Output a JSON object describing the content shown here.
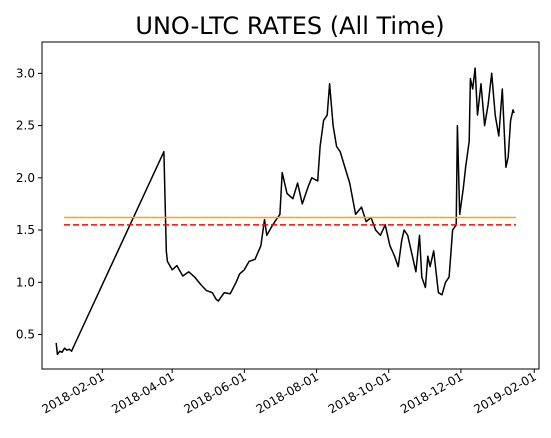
{
  "chart_data": {
    "type": "line",
    "title": "UNO-LTC RATES (All Time)",
    "xlabel": "",
    "ylabel": "",
    "x_range": [
      "2017-12-12",
      "2019-02-05"
    ],
    "ylim": [
      0.17,
      3.3
    ],
    "grid": false,
    "x_ticks": [
      "2018-02-01",
      "2018-04-01",
      "2018-06-01",
      "2018-08-01",
      "2018-10-01",
      "2018-12-01",
      "2019-02-01"
    ],
    "y_ticks": [
      0.5,
      1.0,
      1.5,
      2.0,
      2.5,
      3.0
    ],
    "y_tick_labels": [
      "0.5",
      "1.0",
      "1.5",
      "2.0",
      "2.5",
      "3.0"
    ],
    "hlines": [
      {
        "value": 1.62,
        "color": "#ffa500",
        "style": "solid"
      },
      {
        "value": 1.55,
        "color": "#ff0000",
        "style": "dashed"
      }
    ],
    "series": [
      {
        "color": "#000000",
        "points": [
          [
            "2017-12-24",
            0.42
          ],
          [
            "2017-12-25",
            0.31
          ],
          [
            "2017-12-27",
            0.34
          ],
          [
            "2017-12-29",
            0.33
          ],
          [
            "2017-12-31",
            0.37
          ],
          [
            "2018-01-02",
            0.35
          ],
          [
            "2018-01-04",
            0.36
          ],
          [
            "2018-01-06",
            0.34
          ],
          [
            "2018-01-08",
            0.39
          ],
          [
            "2018-03-25",
            2.25
          ],
          [
            "2018-03-27",
            1.3
          ],
          [
            "2018-03-28",
            1.2
          ],
          [
            "2018-04-01",
            1.12
          ],
          [
            "2018-04-05",
            1.16
          ],
          [
            "2018-04-10",
            1.06
          ],
          [
            "2018-04-15",
            1.1
          ],
          [
            "2018-04-20",
            1.05
          ],
          [
            "2018-04-25",
            0.98
          ],
          [
            "2018-04-30",
            0.92
          ],
          [
            "2018-05-05",
            0.9
          ],
          [
            "2018-05-08",
            0.84
          ],
          [
            "2018-05-10",
            0.82
          ],
          [
            "2018-05-15",
            0.9
          ],
          [
            "2018-05-20",
            0.89
          ],
          [
            "2018-05-25",
            1.0
          ],
          [
            "2018-05-28",
            1.08
          ],
          [
            "2018-06-01",
            1.12
          ],
          [
            "2018-06-05",
            1.2
          ],
          [
            "2018-06-10",
            1.22
          ],
          [
            "2018-06-15",
            1.35
          ],
          [
            "2018-06-18",
            1.6
          ],
          [
            "2018-06-20",
            1.45
          ],
          [
            "2018-06-25",
            1.55
          ],
          [
            "2018-06-28",
            1.6
          ],
          [
            "2018-07-01",
            1.65
          ],
          [
            "2018-07-03",
            2.05
          ],
          [
            "2018-07-07",
            1.85
          ],
          [
            "2018-07-12",
            1.8
          ],
          [
            "2018-07-16",
            1.95
          ],
          [
            "2018-07-20",
            1.75
          ],
          [
            "2018-07-25",
            1.92
          ],
          [
            "2018-07-28",
            2.0
          ],
          [
            "2018-08-02",
            1.97
          ],
          [
            "2018-08-04",
            2.3
          ],
          [
            "2018-08-07",
            2.55
          ],
          [
            "2018-08-10",
            2.6
          ],
          [
            "2018-08-12",
            2.9
          ],
          [
            "2018-08-15",
            2.5
          ],
          [
            "2018-08-18",
            2.3
          ],
          [
            "2018-08-21",
            2.25
          ],
          [
            "2018-08-25",
            2.1
          ],
          [
            "2018-08-29",
            1.95
          ],
          [
            "2018-09-03",
            1.65
          ],
          [
            "2018-09-08",
            1.72
          ],
          [
            "2018-09-12",
            1.58
          ],
          [
            "2018-09-16",
            1.62
          ],
          [
            "2018-09-20",
            1.5
          ],
          [
            "2018-09-24",
            1.45
          ],
          [
            "2018-09-28",
            1.55
          ],
          [
            "2018-10-02",
            1.35
          ],
          [
            "2018-10-06",
            1.25
          ],
          [
            "2018-10-09",
            1.15
          ],
          [
            "2018-10-12",
            1.4
          ],
          [
            "2018-10-14",
            1.5
          ],
          [
            "2018-10-17",
            1.45
          ],
          [
            "2018-10-20",
            1.3
          ],
          [
            "2018-10-24",
            1.1
          ],
          [
            "2018-10-27",
            1.45
          ],
          [
            "2018-10-29",
            1.05
          ],
          [
            "2018-11-01",
            0.95
          ],
          [
            "2018-11-03",
            1.25
          ],
          [
            "2018-11-05",
            1.15
          ],
          [
            "2018-11-08",
            1.3
          ],
          [
            "2018-11-12",
            0.9
          ],
          [
            "2018-11-15",
            0.88
          ],
          [
            "2018-11-18",
            1.0
          ],
          [
            "2018-11-21",
            1.05
          ],
          [
            "2018-11-24",
            1.5
          ],
          [
            "2018-11-27",
            1.55
          ],
          [
            "2018-11-28",
            2.5
          ],
          [
            "2018-11-30",
            1.65
          ],
          [
            "2018-12-03",
            1.9
          ],
          [
            "2018-12-05",
            2.1
          ],
          [
            "2018-12-08",
            2.35
          ],
          [
            "2018-12-09",
            2.95
          ],
          [
            "2018-12-11",
            2.85
          ],
          [
            "2018-12-13",
            3.05
          ],
          [
            "2018-12-15",
            2.6
          ],
          [
            "2018-12-18",
            2.9
          ],
          [
            "2018-12-21",
            2.5
          ],
          [
            "2018-12-24",
            2.7
          ],
          [
            "2018-12-27",
            3.0
          ],
          [
            "2018-12-30",
            2.6
          ],
          [
            "2019-01-02",
            2.4
          ],
          [
            "2019-01-05",
            2.85
          ],
          [
            "2019-01-08",
            2.1
          ],
          [
            "2019-01-10",
            2.2
          ],
          [
            "2019-01-12",
            2.55
          ],
          [
            "2019-01-14",
            2.65
          ],
          [
            "2019-01-15",
            2.62
          ]
        ]
      }
    ]
  }
}
